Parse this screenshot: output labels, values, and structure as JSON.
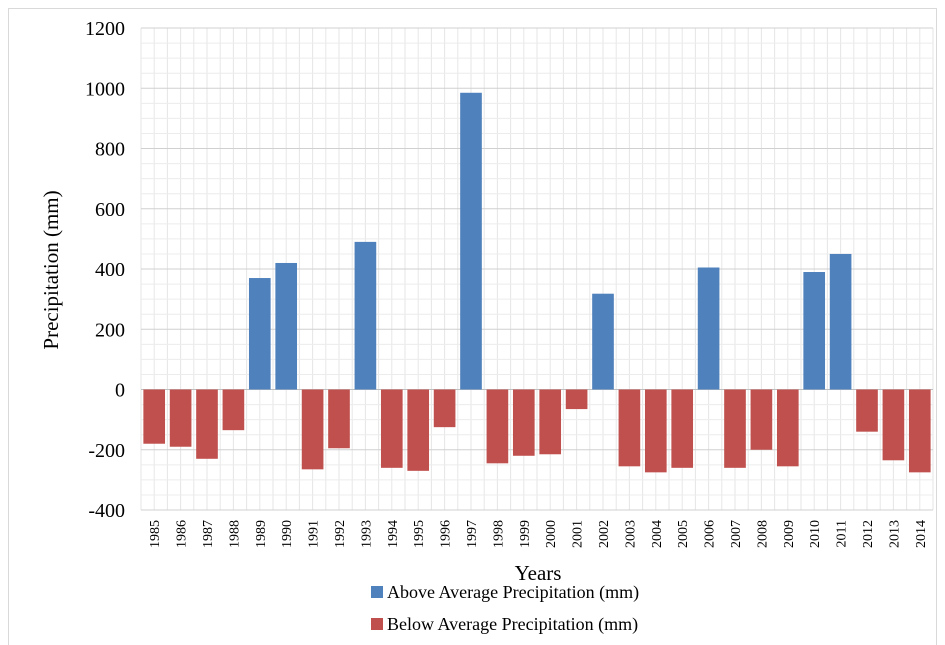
{
  "chart_data": {
    "type": "bar",
    "title": "",
    "xlabel": "Years",
    "ylabel": "Precipitation (mm)",
    "ylim": [
      -400,
      1200
    ],
    "yticks": [
      -400,
      -200,
      0,
      200,
      400,
      600,
      800,
      1000,
      1200
    ],
    "grid": true,
    "legend_position": "bottom",
    "categories": [
      "1985",
      "1986",
      "1987",
      "1988",
      "1989",
      "1990",
      "1991",
      "1992",
      "1993",
      "1994",
      "1995",
      "1996",
      "1997",
      "1998",
      "1999",
      "2000",
      "2001",
      "2002",
      "2003",
      "2004",
      "2005",
      "2006",
      "2007",
      "2008",
      "2009",
      "2010",
      "2011",
      "2012",
      "2013",
      "2014"
    ],
    "series": [
      {
        "name": "Above Average Precipitation (mm)",
        "color": "#4f81bd",
        "values": [
          null,
          null,
          null,
          null,
          370,
          420,
          null,
          null,
          490,
          null,
          null,
          null,
          985,
          null,
          null,
          null,
          null,
          318,
          null,
          null,
          null,
          405,
          null,
          null,
          null,
          390,
          450,
          null,
          null,
          null
        ]
      },
      {
        "name": "Below Average Precipitation (mm)",
        "color": "#c0504d",
        "values": [
          -180,
          -190,
          -230,
          -135,
          null,
          null,
          -265,
          -195,
          null,
          -260,
          -270,
          -125,
          null,
          -245,
          -220,
          -215,
          -65,
          null,
          -255,
          -275,
          -260,
          null,
          -260,
          -200,
          -255,
          null,
          null,
          -140,
          -235,
          -275
        ]
      }
    ]
  }
}
